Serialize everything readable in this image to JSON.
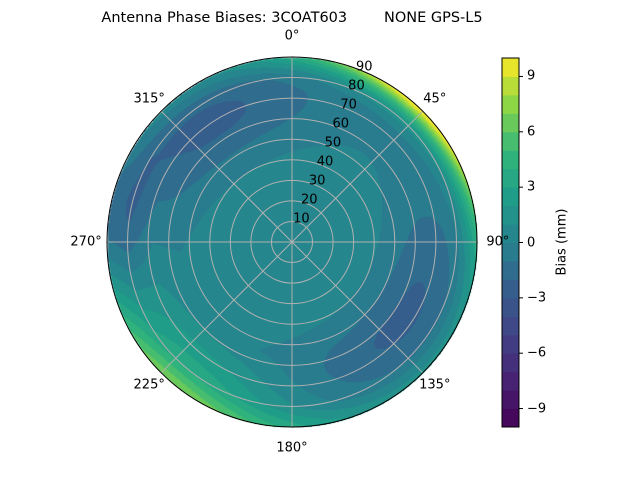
{
  "chart_data": {
    "type": "heatmap",
    "subtype": "polar filled contour",
    "title": "Antenna Phase Biases: 3COAT603        NONE GPS-L5",
    "colormap": "viridis",
    "theta_zero": "top",
    "theta_direction": "clockwise",
    "theta_ticks": [
      "0°",
      "45°",
      "90°",
      "135°",
      "180°",
      "225°",
      "270°",
      "315°"
    ],
    "r_ticks": [
      "10",
      "20",
      "30",
      "40",
      "50",
      "60",
      "70",
      "80",
      "90"
    ],
    "rlim": [
      0,
      90
    ],
    "grid": true,
    "colorbar": {
      "label": "Bias (mm)",
      "range": [
        -10,
        10
      ],
      "level_step": 1,
      "ticks": [
        "−9",
        "−6",
        "−3",
        "0",
        "3",
        "6",
        "9"
      ],
      "tick_values": [
        -9,
        -6,
        -3,
        0,
        3,
        6,
        9
      ]
    },
    "features": [
      {
        "azimuth_deg": 45,
        "elevation_ring": "80-90",
        "bias_mm": 9
      },
      {
        "azimuth_deg": 220,
        "elevation_ring": "70-90",
        "bias_mm": 5
      },
      {
        "azimuth_deg": 120,
        "elevation_ring": "50-80",
        "bias_mm": -2.5
      },
      {
        "azimuth_deg": 320,
        "elevation_ring": "50-90",
        "bias_mm": -2.5
      },
      {
        "azimuth_deg": 275,
        "elevation_ring": "80-90",
        "bias_mm": -4
      },
      {
        "azimuth_deg": 0,
        "elevation_ring": "0-40",
        "bias_mm": 0.5
      }
    ]
  }
}
